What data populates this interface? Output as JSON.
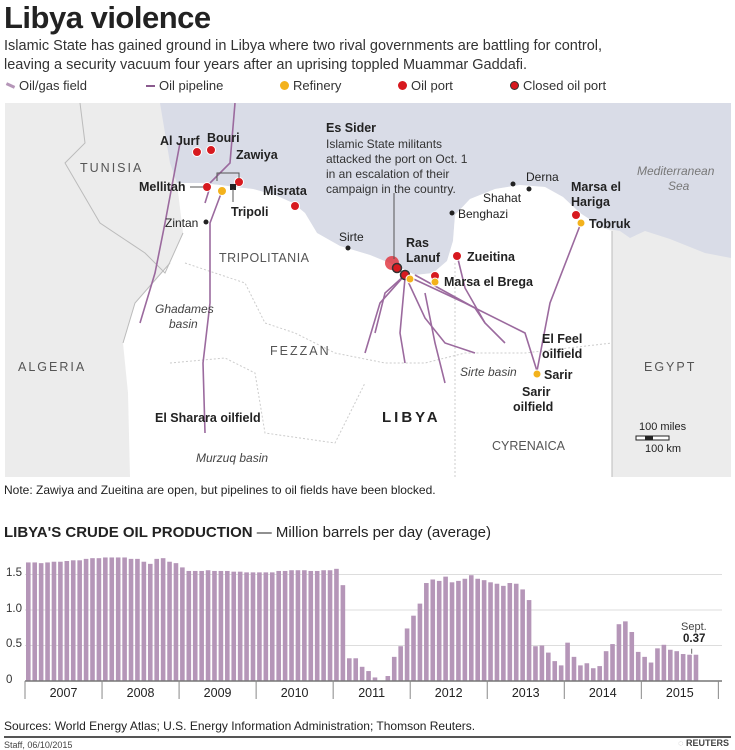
{
  "header": {
    "title": "Libya violence",
    "subtitle_line1": "Islamic State has gained ground in Libya where two rival governments are battling for control,",
    "subtitle_line2": "leaving a security vacuum four years after an uprising toppled Muammar Gaddafi."
  },
  "legend": {
    "oil_gas_field": "Oil/gas field",
    "oil_pipeline": "Oil pipeline",
    "refinery": "Refinery",
    "oil_port": "Oil port",
    "closed_oil_port": "Closed oil port"
  },
  "colors": {
    "sea": "#d9dce7",
    "land": "#ffffff",
    "neighbor": "#ececec",
    "pipeline": "#9b6a9e",
    "refinery": "#f3b21c",
    "oil_port": "#d7191f",
    "bar": "#b596b8"
  },
  "map": {
    "countries": {
      "tunisia": "TUNISIA",
      "algeria": "ALGERIA",
      "egypt": "EGYPT",
      "libya": "LIBYA"
    },
    "sea": {
      "line1": "Mediterranean",
      "line2": "Sea"
    },
    "regions": {
      "tripolitania": "TRIPOLITANIA",
      "fezzan": "FEZZAN",
      "cyrenaica": "CYRENAICA"
    },
    "basins": {
      "ghadames1": "Ghadames",
      "ghadames2": "basin",
      "murzuq": "Murzuq basin",
      "sirte": "Sirte basin"
    },
    "places": {
      "al_jurf": "Al Jurf",
      "bouri": "Bouri",
      "zawiya": "Zawiya",
      "mellitah": "Mellitah",
      "tripoli": "Tripoli",
      "misrata": "Misrata",
      "zintan": "Zintan",
      "sirte": "Sirte",
      "ras_lanuf1": "Ras",
      "ras_lanuf2": "Lanuf",
      "zueitina": "Zueitina",
      "marsa_el_brega": "Marsa el Brega",
      "benghazi": "Benghazi",
      "shahat": "Shahat",
      "derna": "Derna",
      "marsa_el_hariga1": "Marsa el",
      "marsa_el_hariga2": "Hariga",
      "tobruk": "Tobruk",
      "el_feel1": "El Feel",
      "el_feel2": "oilfield",
      "sarir": "Sarir",
      "sarir_field1": "Sarir",
      "sarir_field2": "oilfield",
      "el_sharara": "El Sharara oilfield"
    },
    "annotation": {
      "title": "Es Sider",
      "line1": "Islamic State militants",
      "line2": "attacked the port on Oct. 1",
      "line3": "in an escalation of their",
      "line4": "campaign in the country."
    },
    "scale": {
      "miles": "100 miles",
      "km": "100 km"
    }
  },
  "note": "Note: Zawiya and Zueitina are open, but pipelines to oil fields have been blocked.",
  "chart_data": {
    "type": "bar",
    "title": "LIBYA'S CRUDE OIL PRODUCTION",
    "subtitle": "— Million barrels per day (average)",
    "ylim": [
      0,
      1.75
    ],
    "yticks": [
      "0",
      "0.5",
      "1.0",
      "1.5"
    ],
    "years": [
      "2007",
      "2008",
      "2009",
      "2010",
      "2011",
      "2012",
      "2013",
      "2014",
      "2015"
    ],
    "annotation": {
      "label": "Sept.",
      "value": "0.37"
    },
    "values": [
      1.67,
      1.67,
      1.66,
      1.67,
      1.68,
      1.68,
      1.69,
      1.7,
      1.7,
      1.72,
      1.73,
      1.73,
      1.74,
      1.74,
      1.74,
      1.74,
      1.72,
      1.72,
      1.68,
      1.65,
      1.72,
      1.73,
      1.68,
      1.66,
      1.6,
      1.55,
      1.55,
      1.55,
      1.56,
      1.55,
      1.55,
      1.55,
      1.54,
      1.54,
      1.53,
      1.53,
      1.53,
      1.53,
      1.53,
      1.55,
      1.55,
      1.56,
      1.56,
      1.56,
      1.55,
      1.55,
      1.56,
      1.56,
      1.58,
      1.35,
      0.32,
      0.32,
      0.2,
      0.14,
      0.05,
      0,
      0.07,
      0.34,
      0.49,
      0.74,
      0.92,
      1.09,
      1.38,
      1.43,
      1.41,
      1.47,
      1.39,
      1.41,
      1.44,
      1.49,
      1.44,
      1.42,
      1.39,
      1.37,
      1.34,
      1.38,
      1.37,
      1.29,
      1.14,
      0.49,
      0.5,
      0.4,
      0.28,
      0.22,
      0.54,
      0.34,
      0.22,
      0.25,
      0.18,
      0.21,
      0.42,
      0.52,
      0.8,
      0.84,
      0.69,
      0.41,
      0.34,
      0.26,
      0.46,
      0.51,
      0.44,
      0.42,
      0.38,
      0.37,
      0.37
    ]
  },
  "footer": {
    "sources": "Sources: World Energy Atlas; U.S. Energy Information Administration; Thomson Reuters.",
    "staff": "Staff, 06/10/2015",
    "brand": "REUTERS"
  }
}
